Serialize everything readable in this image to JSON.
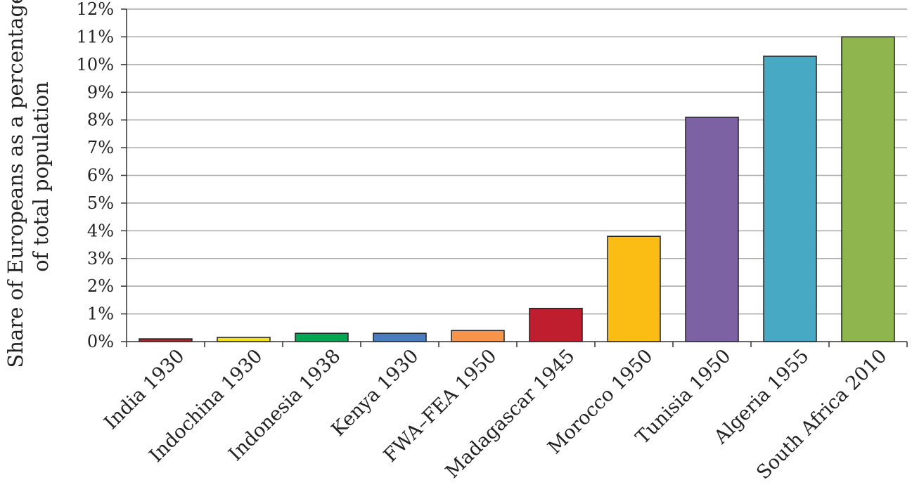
{
  "chart_data": {
    "type": "bar",
    "title": "",
    "xlabel": "",
    "ylabel_lines": [
      "Share of Europeans as a percentage",
      "of total population"
    ],
    "categories": [
      "India 1930",
      "Indochina 1930",
      "Indonesia 1938",
      "Kenya 1930",
      "FWA–FEA 1950",
      "Madagascar 1945",
      "Morocco 1950",
      "Tunisia 1950",
      "Algeria 1955",
      "South Africa 2010"
    ],
    "values": [
      0.1,
      0.15,
      0.3,
      0.3,
      0.4,
      1.2,
      3.8,
      8.1,
      10.3,
      11.0
    ],
    "colors": [
      "#b52026",
      "#f2e11b",
      "#00a651",
      "#4a7cc0",
      "#f7944a",
      "#be1e2d",
      "#fbbd14",
      "#7d62a3",
      "#48a9c5",
      "#8fb54f"
    ],
    "ylim": [
      0,
      12
    ],
    "yticks": [
      0,
      1,
      2,
      3,
      4,
      5,
      6,
      7,
      8,
      9,
      10,
      11,
      12
    ],
    "ytick_labels": [
      "0%",
      "1%",
      "2%",
      "3%",
      "4%",
      "5%",
      "6%",
      "7%",
      "8%",
      "9%",
      "10%",
      "11%",
      "12%"
    ],
    "grid": true,
    "legend": "none"
  }
}
